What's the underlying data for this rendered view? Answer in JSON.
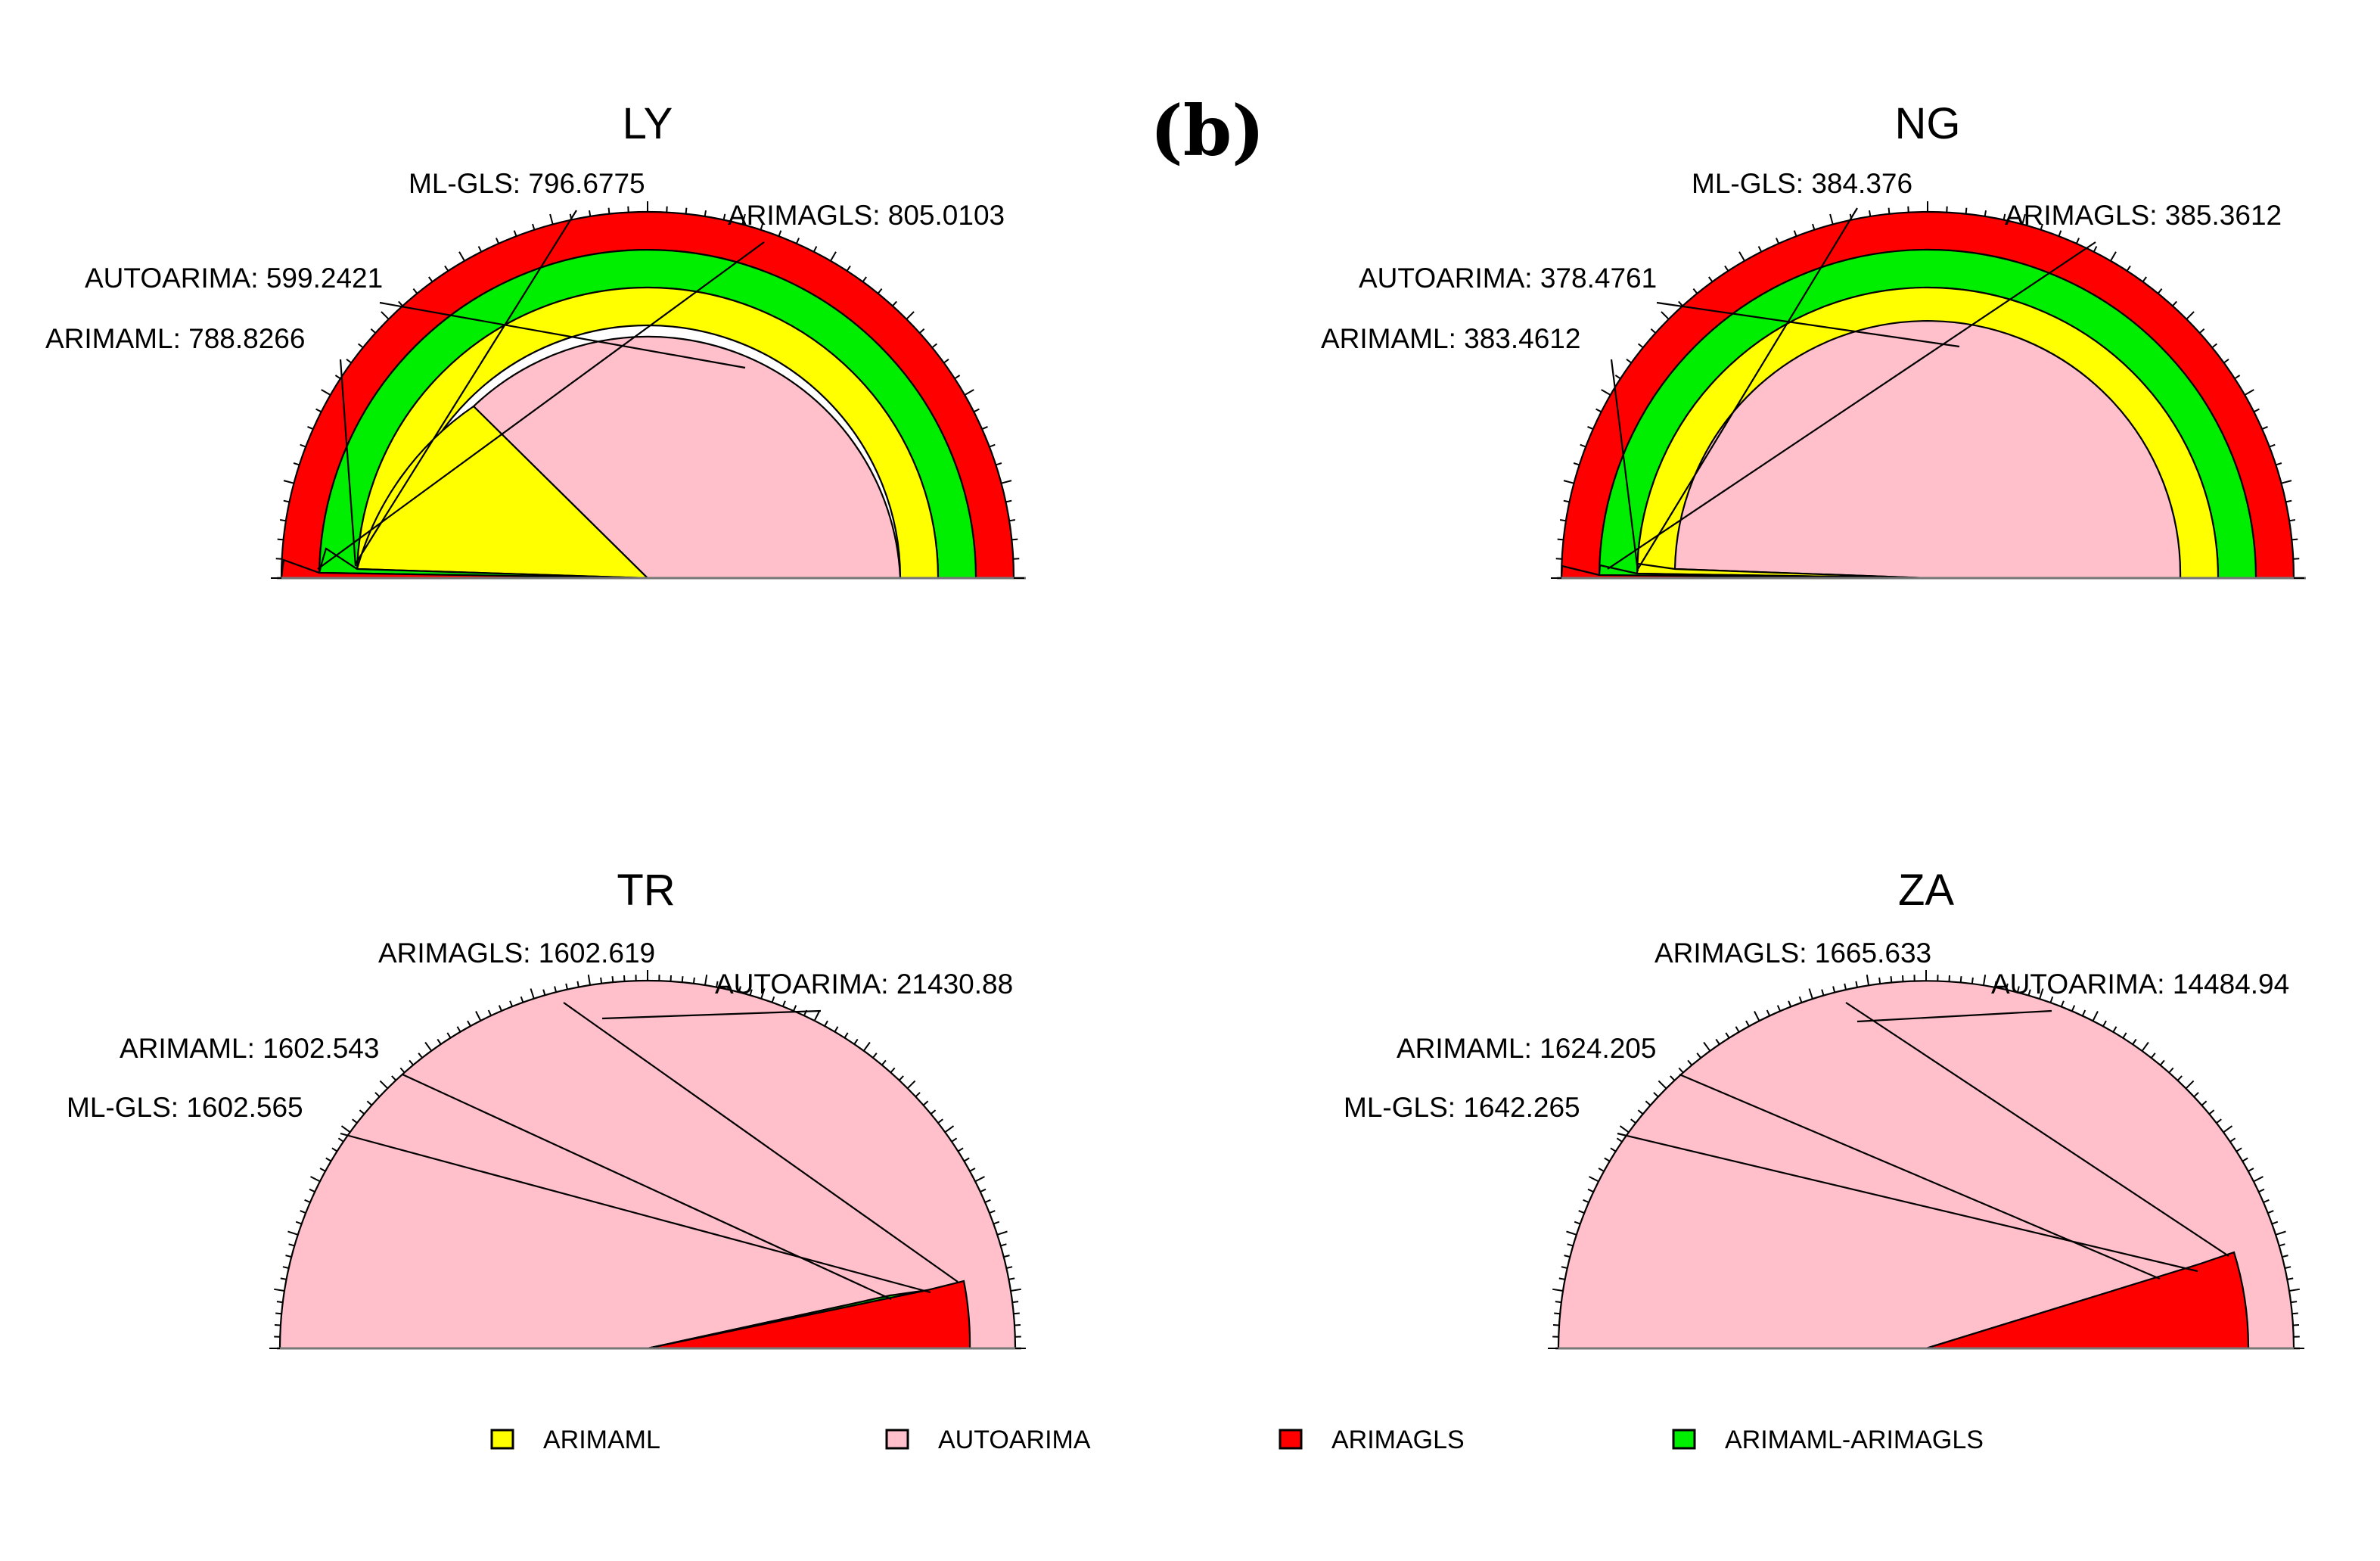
{
  "panel_label": "(b)",
  "colors": {
    "ARIMAML": "#ffff00",
    "AUTOARIMA": "#ffc0cb",
    "ARIMAGLS": "#ff0000",
    "ARIMAML-ARIMAGLS": "#00ee00"
  },
  "chart_data": [
    {
      "type": "radial-pie",
      "title": "LY",
      "slices": [
        {
          "label": "AUTOARIMA",
          "value": 599.2421
        },
        {
          "label": "ARIMAML",
          "value": 788.8266
        },
        {
          "label": "ML-GLS",
          "value": 796.6775
        },
        {
          "label": "ARIMAGLS",
          "value": 805.0103
        }
      ],
      "annotations": [
        {
          "text": "ML-GLS: 796.6775"
        },
        {
          "text": "ARIMAGLS: 805.0103"
        },
        {
          "text": "AUTOARIMA: 599.2421"
        },
        {
          "text": "ARIMAML: 788.8266"
        }
      ]
    },
    {
      "type": "radial-pie",
      "title": "NG",
      "slices": [
        {
          "label": "AUTOARIMA",
          "value": 378.4761
        },
        {
          "label": "ARIMAML",
          "value": 383.4612
        },
        {
          "label": "ML-GLS",
          "value": 384.376
        },
        {
          "label": "ARIMAGLS",
          "value": 385.3612
        }
      ],
      "annotations": [
        {
          "text": "ML-GLS: 384.376"
        },
        {
          "text": "ARIMAGLS: 385.3612"
        },
        {
          "text": "AUTOARIMA: 378.4761"
        },
        {
          "text": "ARIMAML: 383.4612"
        }
      ]
    },
    {
      "type": "radial-pie",
      "title": "TR",
      "slices": [
        {
          "label": "ARIMAML",
          "value": 1602.543
        },
        {
          "label": "ML-GLS",
          "value": 1602.565
        },
        {
          "label": "ARIMAGLS",
          "value": 1602.619
        },
        {
          "label": "AUTOARIMA",
          "value": 21430.88
        }
      ],
      "annotations": [
        {
          "text": "ARIMAGLS: 1602.619"
        },
        {
          "text": "AUTOARIMA: 21430.88"
        },
        {
          "text": "ARIMAML: 1602.543"
        },
        {
          "text": "ML-GLS: 1602.565"
        }
      ]
    },
    {
      "type": "radial-pie",
      "title": "ZA",
      "slices": [
        {
          "label": "ARIMAML",
          "value": 1624.205
        },
        {
          "label": "ML-GLS",
          "value": 1642.265
        },
        {
          "label": "ARIMAGLS",
          "value": 1665.633
        },
        {
          "label": "AUTOARIMA",
          "value": 14484.94
        }
      ],
      "annotations": [
        {
          "text": "ARIMAGLS: 1665.633"
        },
        {
          "text": "AUTOARIMA: 14484.94"
        },
        {
          "text": "ARIMAML: 1624.205"
        },
        {
          "text": "ML-GLS: 1642.265"
        }
      ]
    }
  ],
  "legend": [
    {
      "label": "ARIMAML",
      "color": "#ffff00"
    },
    {
      "label": "AUTOARIMA",
      "color": "#ffc0cb"
    },
    {
      "label": "ARIMAGLS",
      "color": "#ff0000"
    },
    {
      "label": "ARIMAML-ARIMAGLS",
      "color": "#00ee00"
    }
  ]
}
